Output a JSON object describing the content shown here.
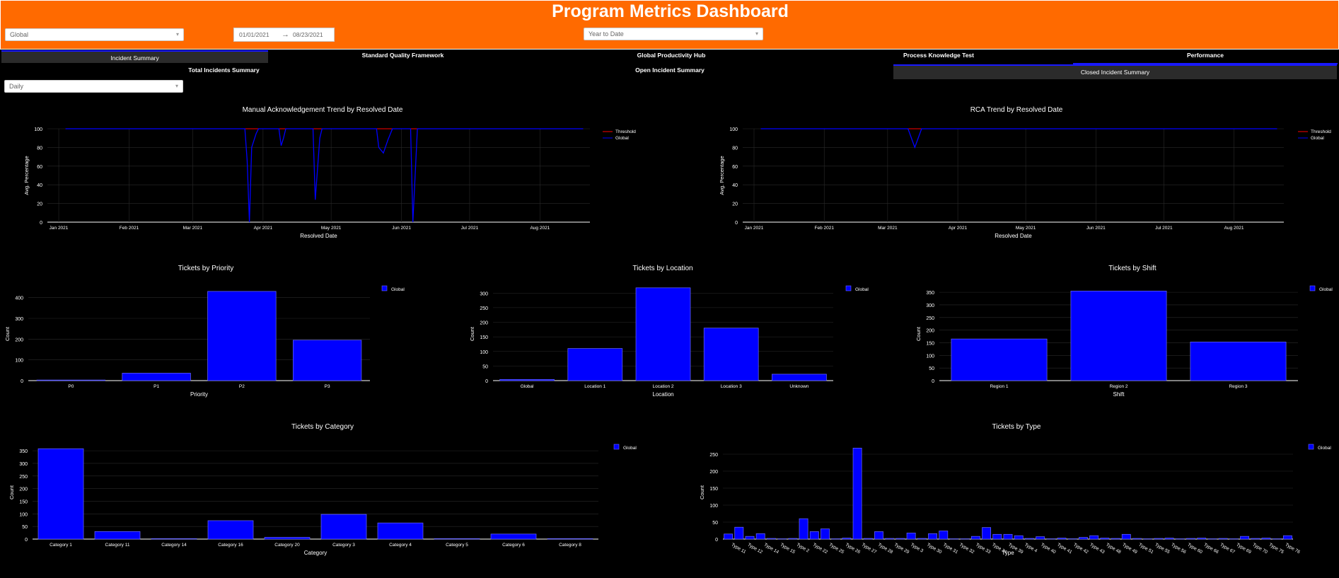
{
  "header": {
    "title": "Program Metrics Dashboard",
    "region": "Global",
    "date_start": "01/01/2021",
    "date_arrow": "→",
    "date_end": "08/23/2021",
    "range": "Year to Date"
  },
  "tabs": [
    "Incident Summary",
    "Standard Quality Framework",
    "Global Productivity Hub",
    "Process Knowledge Test",
    "Performance"
  ],
  "subtabs": [
    "Total Incidents Summary",
    "Open Incident Summary",
    "Closed Incident Summary"
  ],
  "granularity": "Daily",
  "colors": {
    "header_bg": "#ff6a00",
    "series": "#0000ff",
    "threshold": "#ff0000",
    "background": "#000000"
  },
  "chart_data": [
    {
      "type": "line",
      "title": "Manual Acknowledgement Trend by Resolved Date",
      "xlabel": "Resolved Date",
      "ylabel": "Avg. Percentage",
      "xlim": [
        "2020-12-27",
        "2021-08-23"
      ],
      "ylim": [
        0,
        100
      ],
      "yticks": [
        0,
        20,
        40,
        60,
        80,
        100
      ],
      "xticks": [
        {
          "date": "2021-01-01",
          "label": "Jan 2021"
        },
        {
          "date": "2021-02-01",
          "label": "Feb 2021"
        },
        {
          "date": "2021-03-01",
          "label": "Mar 2021"
        },
        {
          "date": "2021-04-01",
          "label": "Apr 2021"
        },
        {
          "date": "2021-05-01",
          "label": "May 2021"
        },
        {
          "date": "2021-06-01",
          "label": "Jun 2021"
        },
        {
          "date": "2021-07-01",
          "label": "Jul 2021"
        },
        {
          "date": "2021-08-01",
          "label": "Aug 2021"
        }
      ],
      "legend": "top-right",
      "series": [
        {
          "name": "Threshold",
          "color": "#ff0000",
          "x": [
            "2021-01-04",
            "2021-08-20"
          ],
          "y": [
            100,
            100
          ]
        },
        {
          "name": "Global",
          "color": "#0000ff",
          "x": [
            "2021-01-04",
            "2021-03-24",
            "2021-03-25",
            "2021-03-26",
            "2021-03-27",
            "2021-03-29",
            "2021-03-30",
            "2021-04-08",
            "2021-04-09",
            "2021-04-10",
            "2021-04-11",
            "2021-04-23",
            "2021-04-24",
            "2021-04-26",
            "2021-04-27",
            "2021-05-21",
            "2021-05-22",
            "2021-05-24",
            "2021-05-26",
            "2021-05-28",
            "2021-06-05",
            "2021-06-06",
            "2021-06-08",
            "2021-08-20"
          ],
          "y": [
            100,
            100,
            66,
            0,
            80,
            95,
            100,
            100,
            82,
            90,
            100,
            100,
            24,
            90,
            100,
            100,
            80,
            74,
            88,
            100,
            100,
            0,
            100,
            100
          ]
        }
      ]
    },
    {
      "type": "line",
      "title": "RCA Trend by Resolved Date",
      "xlabel": "Resolved Date",
      "ylabel": "Avg. Percentage",
      "xlim": [
        "2020-12-27",
        "2021-08-23"
      ],
      "ylim": [
        0,
        100
      ],
      "yticks": [
        0,
        20,
        40,
        60,
        80,
        100
      ],
      "xticks": [
        {
          "date": "2021-01-01",
          "label": "Jan 2021"
        },
        {
          "date": "2021-02-01",
          "label": "Feb 2021"
        },
        {
          "date": "2021-03-01",
          "label": "Mar 2021"
        },
        {
          "date": "2021-04-01",
          "label": "Apr 2021"
        },
        {
          "date": "2021-05-01",
          "label": "May 2021"
        },
        {
          "date": "2021-06-01",
          "label": "Jun 2021"
        },
        {
          "date": "2021-07-01",
          "label": "Jul 2021"
        },
        {
          "date": "2021-08-01",
          "label": "Aug 2021"
        }
      ],
      "legend": "top-right",
      "series": [
        {
          "name": "Threshold",
          "color": "#ff0000",
          "x": [
            "2021-01-04",
            "2021-08-20"
          ],
          "y": [
            100,
            100
          ]
        },
        {
          "name": "Global",
          "color": "#0000ff",
          "x": [
            "2021-01-04",
            "2021-03-10",
            "2021-03-13",
            "2021-03-16",
            "2021-08-20"
          ],
          "y": [
            100,
            100,
            80,
            100,
            100
          ]
        }
      ]
    },
    {
      "type": "bar",
      "title": "Tickets by Priority",
      "xlabel": "Priority",
      "ylabel": "Count",
      "ylim": [
        0,
        450
      ],
      "yticks": [
        0,
        100,
        200,
        300,
        400
      ],
      "legend": "top-right",
      "categories": [
        "P0",
        "P1",
        "P2",
        "P3"
      ],
      "series": [
        {
          "name": "Global",
          "values": [
            3,
            36,
            430,
            195
          ]
        }
      ]
    },
    {
      "type": "bar",
      "title": "Tickets by Location",
      "xlabel": "Location",
      "ylabel": "Count",
      "ylim": [
        0,
        320
      ],
      "yticks": [
        0,
        50,
        100,
        150,
        200,
        250,
        300
      ],
      "legend": "top-right",
      "categories": [
        "Global",
        "Location 1",
        "Location 2",
        "Location 3",
        "Unknown"
      ],
      "series": [
        {
          "name": "Global",
          "values": [
            4,
            110,
            318,
            180,
            22
          ]
        }
      ]
    },
    {
      "type": "bar",
      "title": "Tickets by Shift",
      "xlabel": "Shift",
      "ylabel": "Count",
      "ylim": [
        0,
        370
      ],
      "yticks": [
        0,
        50,
        100,
        150,
        200,
        250,
        300,
        350
      ],
      "legend": "top-right",
      "categories": [
        "Region 1",
        "Region 2",
        "Region 3"
      ],
      "series": [
        {
          "name": "Global",
          "values": [
            165,
            355,
            153
          ]
        }
      ]
    },
    {
      "type": "bar",
      "title": "Tickets by Category",
      "xlabel": "Category",
      "ylabel": "Count",
      "ylim": [
        0,
        370
      ],
      "yticks": [
        0,
        50,
        100,
        150,
        200,
        250,
        300,
        350
      ],
      "legend": "top-right",
      "categories": [
        "Category 1",
        "Category 11",
        "Category 14",
        "Category 16",
        "Category 20",
        "Category 3",
        "Category 4",
        "Category 5",
        "Category 6",
        "Category 8"
      ],
      "series": [
        {
          "name": "Global",
          "values": [
            358,
            30,
            2,
            73,
            7,
            98,
            64,
            2,
            20,
            2
          ]
        }
      ]
    },
    {
      "type": "bar",
      "title": "Tickets by Type",
      "xlabel": "Type",
      "ylabel": "Count",
      "ylim": [
        0,
        275
      ],
      "yticks": [
        0,
        50,
        100,
        150,
        200,
        250
      ],
      "legend": "top-right",
      "tick_labels_shown": [
        "Type 11",
        "Type 12",
        "Type 14",
        "Type 15",
        "Type 2",
        "Type 22",
        "Type 25",
        "Type 26",
        "Type 27",
        "Type 28",
        "Type 29",
        "Type 3",
        "Type 30",
        "Type 31",
        "Type 32",
        "Type 33",
        "Type 34",
        "Type 39",
        "Type 4",
        "Type 40",
        "Type 41",
        "Type 42",
        "Type 43",
        "Type 48",
        "Type 49",
        "Type 51",
        "Type 55",
        "Type 56",
        "Type 60",
        "Type 66",
        "Type 67",
        "Type 69",
        "Type 70",
        "Type 75",
        "Type 76"
      ],
      "series": [
        {
          "name": "Global",
          "values": [
            15,
            35,
            8,
            16,
            2,
            1,
            2,
            60,
            22,
            30,
            1,
            3,
            268,
            2,
            22,
            2,
            2,
            18,
            2,
            16,
            24,
            1,
            1,
            8,
            34,
            14,
            14,
            10,
            2,
            7,
            1,
            3,
            1,
            5,
            10,
            3,
            2,
            14,
            2,
            1,
            2,
            3,
            1,
            2,
            3,
            1,
            2,
            1,
            8,
            2,
            3,
            1,
            10
          ]
        }
      ]
    }
  ]
}
